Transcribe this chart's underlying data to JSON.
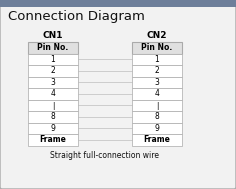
{
  "title": "Connection Diagram",
  "cn1_label": "CN1",
  "cn2_label": "CN2",
  "pin_header": "Pin No.",
  "rows": [
    "1",
    "2",
    "3",
    "4",
    "❘",
    "8",
    "9",
    "Frame"
  ],
  "subtitle": "Straight full-connection wire",
  "bg_color": "#f2f2f2",
  "top_border_color": "#6e7f9a",
  "border_color": "#aaaaaa",
  "table_bg": "#ffffff",
  "header_bg": "#e0e0e0",
  "row_alt_bg": "#eeeeee",
  "line_color": "#aaaaaa",
  "wire_color": "#cccccc",
  "title_color": "#111111",
  "title_fontsize": 9.5,
  "cn_label_fontsize": 6.5,
  "row_fontsize": 5.5
}
